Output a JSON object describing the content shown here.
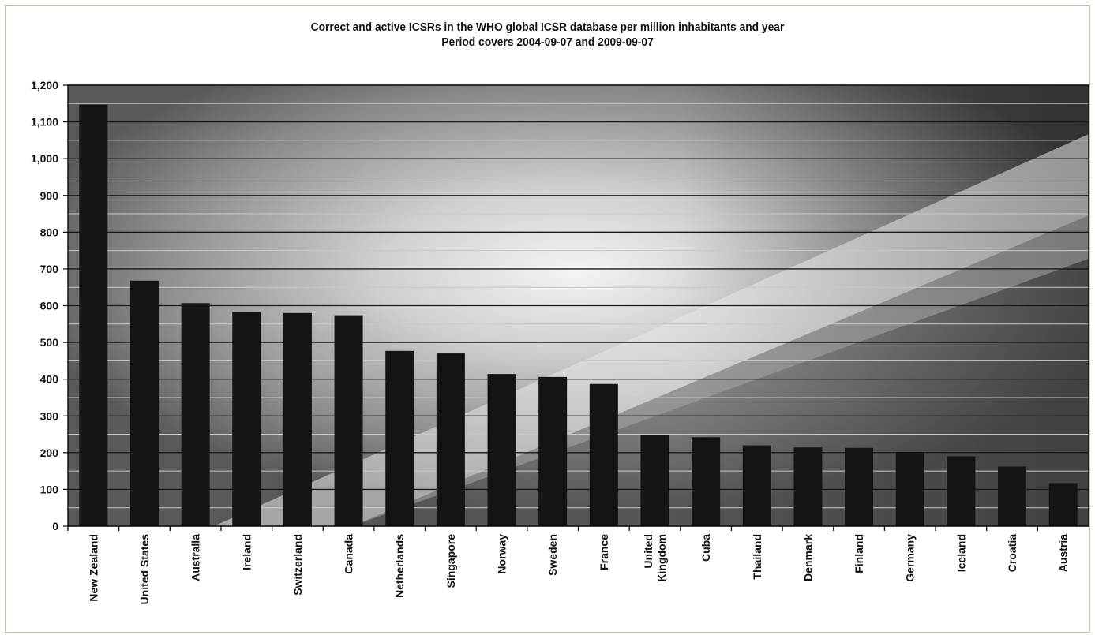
{
  "chart_data": {
    "type": "bar",
    "title": "Correct and active ICSRs in the WHO global ICSR database per million inhabitants and year",
    "subtitle": "Period covers 2004-09-07 and 2009-09-07",
    "xlabel": "",
    "ylabel": "",
    "ylim": [
      0,
      1200
    ],
    "yticks": [
      0,
      100,
      200,
      300,
      400,
      500,
      600,
      700,
      800,
      900,
      1000,
      1100,
      1200
    ],
    "ytick_labels": [
      "0",
      "100",
      "200",
      "300",
      "400",
      "500",
      "600",
      "700",
      "800",
      "900",
      "1,000",
      "1,100",
      "1,200"
    ],
    "categories": [
      "New Zealand",
      "United States",
      "Australia",
      "Ireland",
      "Switzerland",
      "Canada",
      "Netherlands",
      "Singapore",
      "Norway",
      "Sweden",
      "France",
      "United Kingdom",
      "Cuba",
      "Thailand",
      "Denmark",
      "Finland",
      "Germany",
      "Iceland",
      "Croatia",
      "Austria"
    ],
    "category_label_lines": [
      [
        "New Zealand"
      ],
      [
        "United States"
      ],
      [
        "Australia"
      ],
      [
        "Ireland"
      ],
      [
        "Switzerland"
      ],
      [
        "Canada"
      ],
      [
        "Netherlands"
      ],
      [
        "Singapore"
      ],
      [
        "Norway"
      ],
      [
        "Sweden"
      ],
      [
        "France"
      ],
      [
        "United",
        "Kingdom"
      ],
      [
        "Cuba"
      ],
      [
        "Thailand"
      ],
      [
        "Denmark"
      ],
      [
        "Finland"
      ],
      [
        "Germany"
      ],
      [
        "Iceland"
      ],
      [
        "Croatia"
      ],
      [
        "Austria"
      ]
    ],
    "values": [
      1147,
      668,
      607,
      583,
      580,
      574,
      477,
      470,
      414,
      406,
      387,
      247,
      242,
      220,
      214,
      213,
      202,
      190,
      162,
      117
    ],
    "grid": true,
    "colors": {
      "bar": "#141414",
      "grid_major": "#1a1a1a",
      "grid_minor": "#c8c8c8"
    }
  }
}
